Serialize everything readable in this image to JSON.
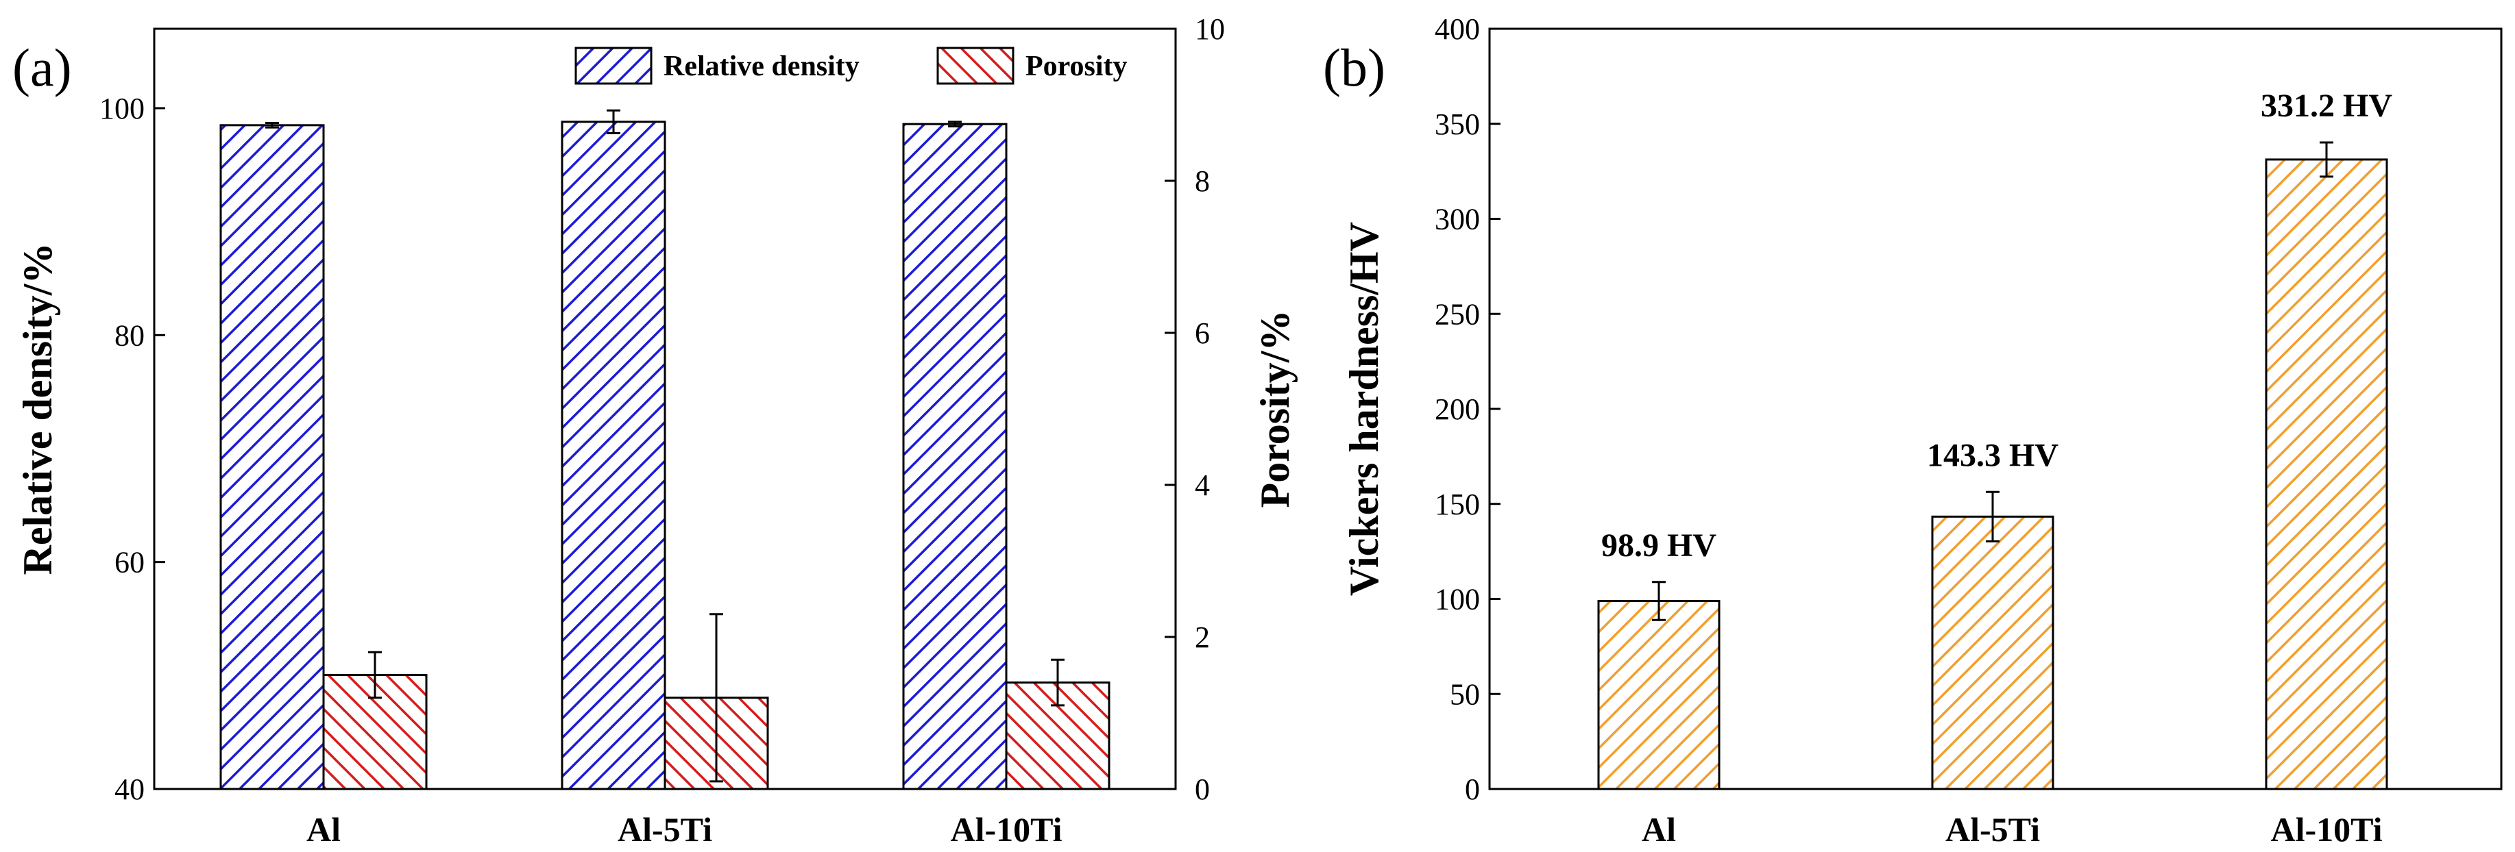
{
  "panels": {
    "a": "(a)",
    "b": "(b)"
  },
  "chart_data": [
    {
      "type": "bar",
      "panel": "(a)",
      "title": "",
      "categories": [
        "Al",
        "Al-5Ti",
        "Al-10Ti"
      ],
      "xlabel": "",
      "ylabel": "Relative density/%",
      "ylim": [
        40,
        107
      ],
      "yticks": [
        40,
        60,
        80,
        100
      ],
      "y2label": "Porosity/%",
      "y2lim": [
        0,
        10
      ],
      "y2ticks": [
        0,
        2,
        4,
        6,
        8,
        10
      ],
      "grid": false,
      "legend_position": "top-right",
      "series": [
        {
          "name": "Relative density",
          "axis": "left",
          "values": [
            98.5,
            98.8,
            98.6
          ],
          "errors": [
            0.2,
            1.0,
            0.2
          ],
          "color": "#1c1cd6",
          "hatch": "////"
        },
        {
          "name": "Porosity",
          "axis": "right",
          "values": [
            1.5,
            1.2,
            1.4
          ],
          "errors": [
            0.3,
            1.1,
            0.3
          ],
          "color": "#d61c1c",
          "hatch": "\\\\\\\\"
        }
      ]
    },
    {
      "type": "bar",
      "panel": "(b)",
      "title": "",
      "categories": [
        "Al",
        "Al-5Ti",
        "Al-10Ti"
      ],
      "xlabel": "",
      "ylabel": "Vickers hardness/HV",
      "ylim": [
        0,
        400
      ],
      "yticks": [
        0,
        50,
        100,
        150,
        200,
        250,
        300,
        350,
        400
      ],
      "grid": false,
      "series": [
        {
          "values": [
            98.9,
            143.3,
            331.2
          ],
          "errors": [
            10,
            13,
            9
          ],
          "color": "#f0a030",
          "hatch": "////"
        }
      ],
      "data_labels": [
        "98.9 HV",
        "143.3 HV",
        "331.2 HV"
      ]
    }
  ]
}
